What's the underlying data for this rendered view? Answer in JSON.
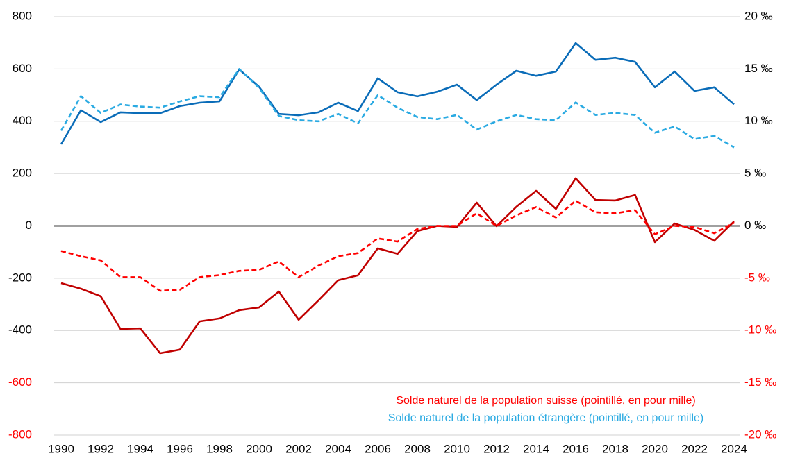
{
  "chart_data": {
    "type": "line",
    "x": [
      1990,
      1991,
      1992,
      1993,
      1994,
      1995,
      1996,
      1997,
      1998,
      1999,
      2000,
      2001,
      2002,
      2003,
      2004,
      2005,
      2006,
      2007,
      2008,
      2009,
      2010,
      2011,
      2012,
      2013,
      2014,
      2015,
      2016,
      2017,
      2018,
      2019,
      2020,
      2021,
      2022,
      2023,
      2024
    ],
    "xlim": [
      1990,
      2024
    ],
    "xticks": [
      1990,
      1992,
      1994,
      1996,
      1998,
      2000,
      2002,
      2004,
      2006,
      2008,
      2010,
      2012,
      2014,
      2016,
      2018,
      2020,
      2022,
      2024
    ],
    "ylim": [
      -800,
      800
    ],
    "yticks": [
      -800,
      -600,
      -400,
      -200,
      0,
      200,
      400,
      600,
      800
    ],
    "ytick_colors": [
      "#ff0000",
      "#ff0000",
      "#000000",
      "#000000",
      "#000000",
      "#000000",
      "#000000",
      "#000000",
      "#000000"
    ],
    "y2lim": [
      -20,
      20
    ],
    "y2ticks": [
      {
        "value": -20,
        "label": "-20 ‰"
      },
      {
        "value": -15,
        "label": "-15 ‰"
      },
      {
        "value": -10,
        "label": "-10 ‰"
      },
      {
        "value": -5,
        "label": "-5 ‰"
      },
      {
        "value": 0,
        "label": "0 ‰"
      },
      {
        "value": 5,
        "label": "5 ‰"
      },
      {
        "value": 10,
        "label": "10 ‰"
      },
      {
        "value": 15,
        "label": "15 ‰"
      },
      {
        "value": 20,
        "label": "20 ‰"
      }
    ],
    "y2tick_colors": [
      "#ff0000",
      "#ff0000",
      "#ff0000",
      "#ff0000",
      "#000000",
      "#000000",
      "#000000",
      "#000000",
      "#000000"
    ],
    "grid": true,
    "legend": "bottom",
    "series": [
      {
        "color": "#0a6cb8",
        "dashed": false,
        "values": [
          312,
          442,
          397,
          434,
          431,
          431,
          458,
          471,
          476,
          598,
          532,
          428,
          423,
          434,
          471,
          439,
          564,
          511,
          495,
          513,
          540,
          481,
          540,
          593,
          574,
          590,
          699,
          635,
          643,
          627,
          530,
          590,
          516,
          530,
          465
        ]
      },
      {
        "name": "Solde naturel de la population étrangère (pointillé, en pour mille)",
        "color": "#2aaae2",
        "dashed": true,
        "axis": "y2",
        "values": [
          9.1,
          12.4,
          10.8,
          11.6,
          11.4,
          11.3,
          11.9,
          12.4,
          12.3,
          15.0,
          13.2,
          10.5,
          10.1,
          10.0,
          10.7,
          9.8,
          12.5,
          11.3,
          10.4,
          10.2,
          10.6,
          9.2,
          10.0,
          10.6,
          10.2,
          10.1,
          11.8,
          10.6,
          10.8,
          10.6,
          8.9,
          9.5,
          8.3,
          8.6,
          7.5
        ]
      },
      {
        "color": "#c00000",
        "dashed": false,
        "values": [
          -219,
          -240,
          -269,
          -394,
          -392,
          -487,
          -473,
          -365,
          -354,
          -322,
          -312,
          -251,
          -359,
          -285,
          -208,
          -189,
          -86,
          -107,
          -20,
          0,
          -4,
          89,
          -1,
          73,
          134,
          65,
          182,
          99,
          97,
          118,
          -62,
          9,
          -15,
          -57,
          17
        ]
      },
      {
        "name": "Solde naturel de la population suisse (pointillé, en pour mille)",
        "color": "#ff0000",
        "dashed": true,
        "axis": "y2",
        "values": [
          -2.4,
          -2.9,
          -3.3,
          -4.9,
          -4.9,
          -6.2,
          -6.1,
          -4.9,
          -4.7,
          -4.3,
          -4.2,
          -3.4,
          -4.9,
          -3.8,
          -2.9,
          -2.6,
          -1.2,
          -1.5,
          -0.3,
          0.0,
          0.0,
          1.2,
          0.0,
          1.0,
          1.8,
          0.8,
          2.4,
          1.3,
          1.2,
          1.5,
          -0.8,
          0.0,
          -0.1,
          -0.7,
          0.3
        ]
      }
    ]
  }
}
